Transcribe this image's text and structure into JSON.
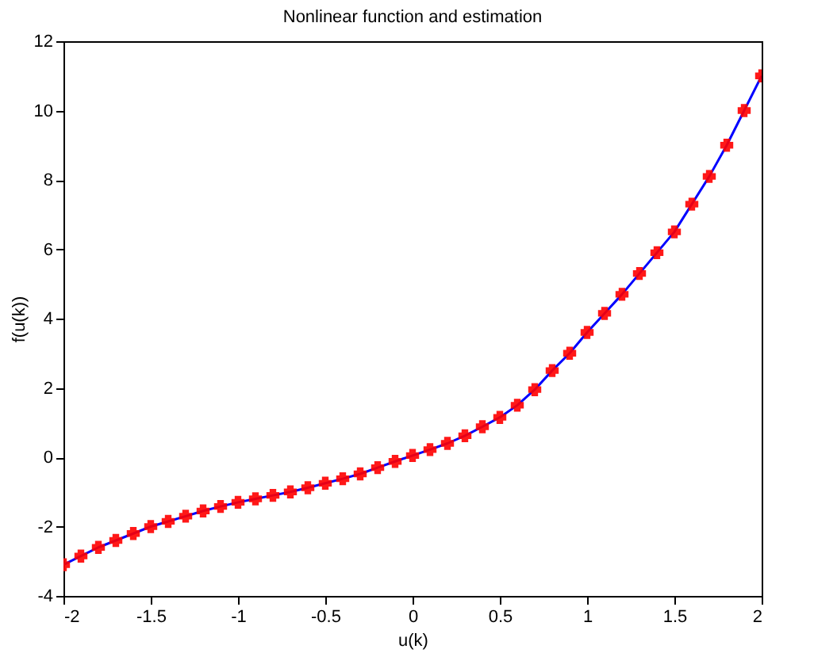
{
  "chart_data": {
    "type": "line",
    "title": "Nonlinear function and estimation",
    "xlabel": "u(k)",
    "ylabel": "f(u(k))",
    "x": [
      -2,
      -1.9,
      -1.8,
      -1.7,
      -1.6,
      -1.5,
      -1.4,
      -1.3,
      -1.2,
      -1.1,
      -1,
      -0.9,
      -0.8,
      -0.7,
      -0.6,
      -0.5,
      -0.4,
      -0.3,
      -0.2,
      -0.1,
      0,
      0.1,
      0.2,
      0.3,
      0.4,
      0.5,
      0.6,
      0.7,
      0.8,
      0.9,
      1,
      1.1,
      1.2,
      1.3,
      1.4,
      1.5,
      1.6,
      1.7,
      1.8,
      1.9,
      2
    ],
    "series": [
      {
        "color": "#0000ff",
        "marker": "none",
        "line_style": "solid",
        "values": [
          -3.1,
          -2.85,
          -2.6,
          -2.4,
          -2.2,
          -2.0,
          -1.85,
          -1.7,
          -1.55,
          -1.42,
          -1.3,
          -1.2,
          -1.1,
          -1.0,
          -0.88,
          -0.75,
          -0.62,
          -0.48,
          -0.3,
          -0.12,
          0.05,
          0.22,
          0.4,
          0.62,
          0.88,
          1.15,
          1.5,
          1.95,
          2.5,
          3.0,
          3.6,
          4.15,
          4.7,
          5.3,
          5.9,
          6.5,
          7.3,
          8.1,
          9.0,
          10.0,
          11.0
        ]
      },
      {
        "type": "scatter",
        "color": "#ff0000",
        "marker": "cross",
        "values": [
          -3.1,
          -2.85,
          -2.6,
          -2.4,
          -2.2,
          -2.0,
          -1.85,
          -1.7,
          -1.55,
          -1.42,
          -1.3,
          -1.2,
          -1.1,
          -1.0,
          -0.88,
          -0.75,
          -0.62,
          -0.48,
          -0.3,
          -0.12,
          0.05,
          0.22,
          0.4,
          0.62,
          0.88,
          1.15,
          1.5,
          1.95,
          2.5,
          3.0,
          3.6,
          4.15,
          4.7,
          5.3,
          5.9,
          6.5,
          7.3,
          8.1,
          9.0,
          10.0,
          11.0
        ]
      }
    ],
    "xlim": [
      -2,
      2
    ],
    "xticks": [
      -2,
      -1.5,
      -1,
      -0.5,
      0,
      0.5,
      1,
      1.5,
      2
    ],
    "ylim": [
      -4,
      12
    ],
    "yticks": [
      -4,
      -2,
      0,
      2,
      4,
      6,
      8,
      10,
      12
    ],
    "grid": false
  }
}
